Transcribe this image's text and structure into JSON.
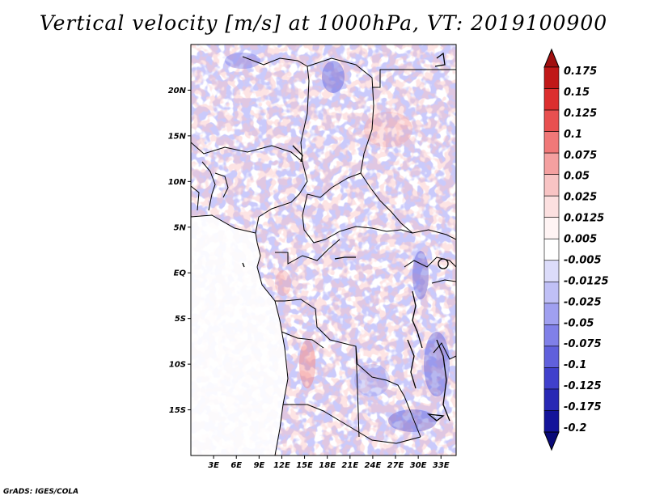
{
  "title": "Vertical velocity [m/s] at 1000hPa, VT: 2019100900",
  "credit": "GrADS: IGES/COLA",
  "map": {
    "lon_range": [
      0,
      35
    ],
    "lat_range": [
      -20,
      25
    ],
    "lat_ticks": [
      {
        "value": 20,
        "label": "20N"
      },
      {
        "value": 15,
        "label": "15N"
      },
      {
        "value": 10,
        "label": "10N"
      },
      {
        "value": 5,
        "label": "5N"
      },
      {
        "value": 0,
        "label": "EQ"
      },
      {
        "value": -5,
        "label": "5S"
      },
      {
        "value": -10,
        "label": "10S"
      },
      {
        "value": -15,
        "label": "15S"
      }
    ],
    "lon_ticks": [
      {
        "value": 3,
        "label": "3E"
      },
      {
        "value": 6,
        "label": "6E"
      },
      {
        "value": 9,
        "label": "9E"
      },
      {
        "value": 12,
        "label": "12E"
      },
      {
        "value": 15,
        "label": "15E"
      },
      {
        "value": 18,
        "label": "18E"
      },
      {
        "value": 21,
        "label": "21E"
      },
      {
        "value": 24,
        "label": "24E"
      },
      {
        "value": 27,
        "label": "27E"
      },
      {
        "value": 30,
        "label": "30E"
      },
      {
        "value": 33,
        "label": "33E"
      }
    ]
  },
  "colorbar": {
    "labels": [
      "0.175",
      "0.15",
      "0.125",
      "0.1",
      "0.075",
      "0.05",
      "0.025",
      "0.0125",
      "0.005",
      "-0.005",
      "-0.0125",
      "-0.025",
      "-0.05",
      "-0.075",
      "-0.1",
      "-0.125",
      "-0.175",
      "-0.2"
    ],
    "colors": [
      "#a01010",
      "#c01818",
      "#dc2e2e",
      "#e85050",
      "#f07878",
      "#f4a0a0",
      "#f8c4c4",
      "#fce0e0",
      "#fff4f4",
      "#ffffff",
      "#dcdcfa",
      "#c0c0f6",
      "#a0a0f0",
      "#8080e8",
      "#6060dc",
      "#4040cc",
      "#2828b4",
      "#14149a",
      "#0a0a78"
    ]
  }
}
